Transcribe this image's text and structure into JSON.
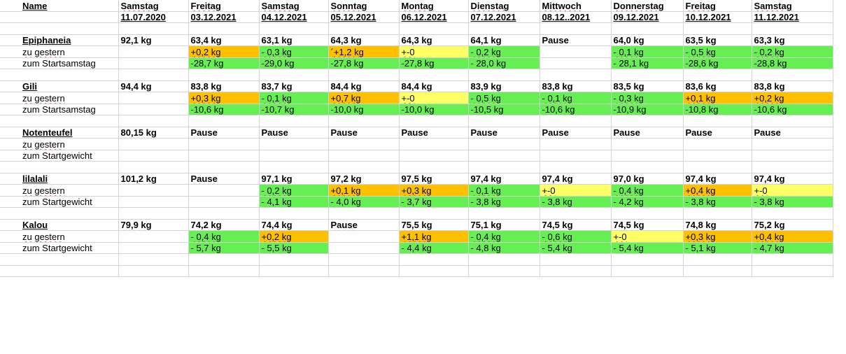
{
  "header": {
    "name_label": "Name",
    "days": [
      "Samstag",
      "Freitag",
      "Samstag",
      "Sonntag",
      "Montag",
      "Dienstag",
      "Mittwoch",
      "Donnerstag",
      "Freitag",
      "Samstag"
    ],
    "dates": [
      "11.07.2020",
      "03.12.2021",
      "04.12.2021",
      "05.12.2021",
      "06.12.2021",
      "07.12.2021",
      "08.12..2021",
      "09.12.2021",
      "10.12.2021",
      "11.12.2021"
    ]
  },
  "colors": {
    "increase": "#ffc000",
    "decrease": "#66ef52",
    "unchanged": "#ffff66"
  },
  "blocks": [
    {
      "name": "Epiphaneia",
      "weights": [
        "92,1 kg",
        "63,4 kg",
        "63,1 kg",
        "64,3 kg",
        "64,3 kg",
        "64,1 kg",
        "Pause",
        "64,0 kg",
        "63,5 kg",
        "63,3 kg"
      ],
      "row2_label": "zu gestern",
      "row2": [
        {
          "t": "",
          "c": ""
        },
        {
          "t": "+0,2 kg",
          "c": "orange"
        },
        {
          "t": "- 0,3 kg",
          "c": "green"
        },
        {
          "t": "´+1,2 kg",
          "c": "orange"
        },
        {
          "t": "+-0",
          "c": "yellow"
        },
        {
          "t": "- 0,2 kg",
          "c": "green"
        },
        {
          "t": "",
          "c": ""
        },
        {
          "t": "- 0,1 kg",
          "c": "green"
        },
        {
          "t": "- 0,5 kg",
          "c": "green"
        },
        {
          "t": "- 0,2 kg",
          "c": "green"
        }
      ],
      "row3_label": "zum Startsamstag",
      "row3": [
        {
          "t": "",
          "c": ""
        },
        {
          "t": "-28,7 kg",
          "c": "green"
        },
        {
          "t": "-29,0 kg",
          "c": "green"
        },
        {
          "t": "-27,8 kg",
          "c": "green"
        },
        {
          "t": "-27,8 kg",
          "c": "green"
        },
        {
          "t": "- 28,0 kg",
          "c": "green"
        },
        {
          "t": "",
          "c": ""
        },
        {
          "t": "- 28,1 kg",
          "c": "green"
        },
        {
          "t": "-28,6 kg",
          "c": "green"
        },
        {
          "t": "-28,8 kg",
          "c": "green"
        }
      ]
    },
    {
      "name": "Gili",
      "weights": [
        "94,4 kg",
        "83,8 kg",
        "83,7 kg",
        "84,4 kg",
        "84,4 kg",
        "83,9 kg",
        "83,8 kg",
        "83,5 kg",
        "83,6 kg",
        "83,8 kg"
      ],
      "row2_label": "zu gestern",
      "row2": [
        {
          "t": "",
          "c": ""
        },
        {
          "t": "+0,3 kg",
          "c": "orange"
        },
        {
          "t": "- 0,1 kg",
          "c": "green"
        },
        {
          "t": "+0,7 kg",
          "c": "orange"
        },
        {
          "t": "+-0",
          "c": "yellow"
        },
        {
          "t": "- 0,5 kg",
          "c": "green"
        },
        {
          "t": "- 0,1 kg",
          "c": "green"
        },
        {
          "t": "- 0,3 kg",
          "c": "green"
        },
        {
          "t": "+0,1 kg",
          "c": "orange"
        },
        {
          "t": "+0,2 kg",
          "c": "orange"
        }
      ],
      "row3_label": "zum Startsamstag",
      "row3": [
        {
          "t": "",
          "c": ""
        },
        {
          "t": "-10,6 kg",
          "c": "green"
        },
        {
          "t": "-10,7 kg",
          "c": "green"
        },
        {
          "t": "-10,0 kg",
          "c": "green"
        },
        {
          "t": "-10,0 kg",
          "c": "green"
        },
        {
          "t": "-10,5 kg",
          "c": "green"
        },
        {
          "t": "-10,6 kg",
          "c": "green"
        },
        {
          "t": "-10,9 kg",
          "c": "green"
        },
        {
          "t": "-10,8 kg",
          "c": "green"
        },
        {
          "t": "-10,6 kg",
          "c": "green"
        }
      ]
    },
    {
      "name": "Notenteufel",
      "weights": [
        "80,15 kg",
        "Pause",
        "Pause",
        "Pause",
        "Pause",
        "Pause",
        "Pause",
        "Pause",
        "Pause",
        "Pause"
      ],
      "row2_label": "zu gestern",
      "row2": [
        {
          "t": "",
          "c": ""
        },
        {
          "t": "",
          "c": ""
        },
        {
          "t": "",
          "c": ""
        },
        {
          "t": "",
          "c": ""
        },
        {
          "t": "",
          "c": ""
        },
        {
          "t": "",
          "c": ""
        },
        {
          "t": "",
          "c": ""
        },
        {
          "t": "",
          "c": ""
        },
        {
          "t": "",
          "c": ""
        },
        {
          "t": "",
          "c": ""
        }
      ],
      "row3_label": "zum Startgewicht",
      "row3": [
        {
          "t": "",
          "c": ""
        },
        {
          "t": "",
          "c": ""
        },
        {
          "t": "",
          "c": ""
        },
        {
          "t": "",
          "c": ""
        },
        {
          "t": "",
          "c": ""
        },
        {
          "t": "",
          "c": ""
        },
        {
          "t": "",
          "c": ""
        },
        {
          "t": "",
          "c": ""
        },
        {
          "t": "",
          "c": ""
        },
        {
          "t": "",
          "c": ""
        }
      ]
    },
    {
      "name": "lilalali",
      "weights": [
        "101,2 kg",
        "Pause",
        "97,1 kg",
        "97,2 kg",
        "97,5 kg",
        "97,4 kg",
        "97,4 kg",
        "97,0 kg",
        "97,4 kg",
        "97,4 kg"
      ],
      "row2_label": "zu gestern",
      "row2": [
        {
          "t": "",
          "c": ""
        },
        {
          "t": "",
          "c": ""
        },
        {
          "t": "- 0,2 kg",
          "c": "green"
        },
        {
          "t": "+0,1 kg",
          "c": "orange"
        },
        {
          "t": "+0,3 kg",
          "c": "orange"
        },
        {
          "t": "- 0,1 kg",
          "c": "green"
        },
        {
          "t": "+-0",
          "c": "yellow"
        },
        {
          "t": "- 0,4 kg",
          "c": "green"
        },
        {
          "t": "+0,4 kg",
          "c": "orange"
        },
        {
          "t": "+-0",
          "c": "yellow"
        }
      ],
      "row3_label": "zum Startgewicht",
      "row3": [
        {
          "t": "",
          "c": ""
        },
        {
          "t": "",
          "c": ""
        },
        {
          "t": "- 4,1 kg",
          "c": "green"
        },
        {
          "t": "- 4,0 kg",
          "c": "green"
        },
        {
          "t": "- 3,7 kg",
          "c": "green"
        },
        {
          "t": "- 3,8 kg",
          "c": "green"
        },
        {
          "t": "- 3,8 kg",
          "c": "green"
        },
        {
          "t": "- 4,2 kg",
          "c": "green"
        },
        {
          "t": "- 3,8 kg",
          "c": "green"
        },
        {
          "t": "- 3,8 kg",
          "c": "green"
        }
      ]
    },
    {
      "name": "Kalou",
      "weights": [
        "79,9 kg",
        "74,2 kg",
        "74,4 kg",
        "Pause",
        "75,5 kg",
        "75,1 kg",
        "74,5 kg",
        "74,5 kg",
        "74,8 kg",
        "75,2 kg"
      ],
      "row2_label": "zu gestern",
      "row2": [
        {
          "t": "",
          "c": ""
        },
        {
          "t": "- 0,4 kg",
          "c": "green"
        },
        {
          "t": "+0,2 kg",
          "c": "orange"
        },
        {
          "t": "",
          "c": ""
        },
        {
          "t": "+1,1 kg",
          "c": "orange"
        },
        {
          "t": "- 0,4 kg",
          "c": "green"
        },
        {
          "t": "- 0,6 kg",
          "c": "green"
        },
        {
          "t": "+-0",
          "c": "yellow"
        },
        {
          "t": "+0,3 kg",
          "c": "orange"
        },
        {
          "t": "+0,4 kg",
          "c": "orange"
        }
      ],
      "row3_label": "zum Startgewicht",
      "row3": [
        {
          "t": "",
          "c": ""
        },
        {
          "t": "- 5,7 kg",
          "c": "green"
        },
        {
          "t": "- 5,5 kg",
          "c": "green"
        },
        {
          "t": "",
          "c": ""
        },
        {
          "t": "- 4,4 kg",
          "c": "green"
        },
        {
          "t": "- 4,8 kg",
          "c": "green"
        },
        {
          "t": "- 5,4 kg",
          "c": "green"
        },
        {
          "t": "- 5,4 kg",
          "c": "green"
        },
        {
          "t": "- 5,1 kg",
          "c": "green"
        },
        {
          "t": "- 4,7 kg",
          "c": "green"
        }
      ]
    }
  ]
}
